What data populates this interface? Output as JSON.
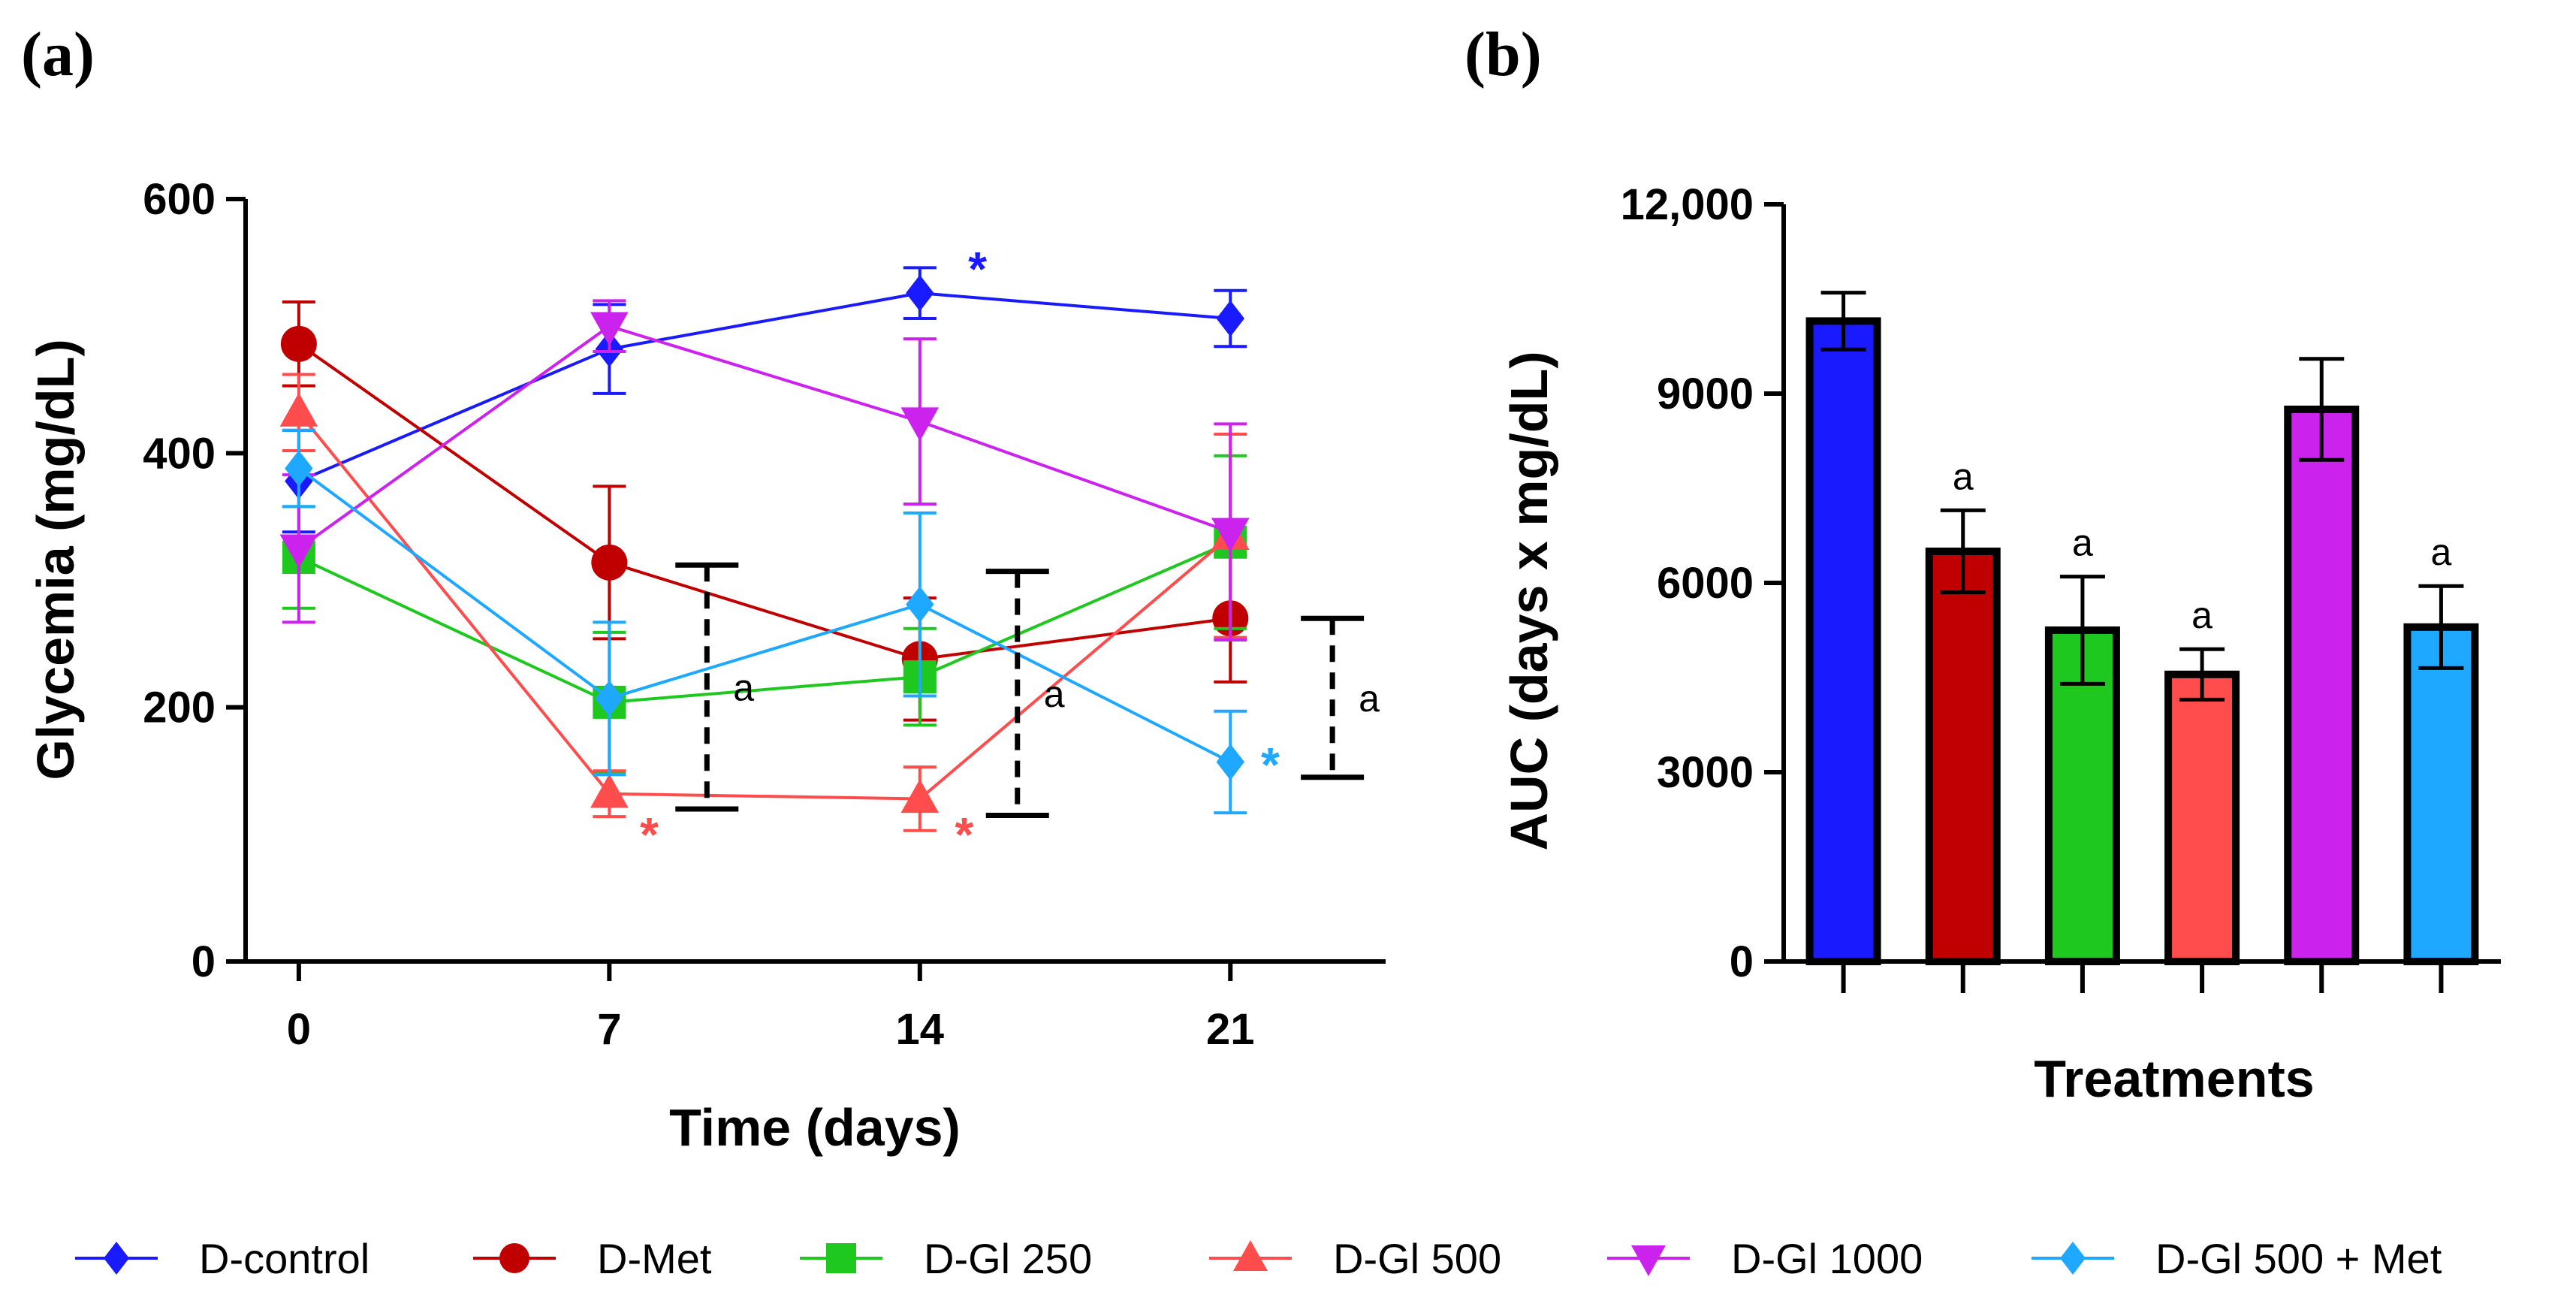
{
  "panels": {
    "a": "(a)",
    "b": "(b)"
  },
  "chart_data": [
    {
      "type": "line",
      "panel": "(a)",
      "title": "",
      "xlabel": "Time (days)",
      "ylabel": "Glycemia (mg/dL)",
      "x": [
        0,
        7,
        14,
        21
      ],
      "x_tick_labels": [
        "0",
        "7",
        "14",
        "21"
      ],
      "xlim": [
        -1.2,
        24.5
      ],
      "ylim": [
        0,
        600
      ],
      "y_ticks": [
        0,
        200,
        400,
        600
      ],
      "y_tick_labels": [
        "0",
        "200",
        "400",
        "600"
      ],
      "series": [
        {
          "name": "D-control",
          "color": "#1a1aff",
          "marker": "diamond",
          "values": [
            378,
            482,
            526,
            506
          ],
          "errors": [
            40,
            35,
            20,
            22
          ]
        },
        {
          "name": "D-Met",
          "color": "#c00000",
          "marker": "circle",
          "values": [
            486,
            314,
            238,
            270
          ],
          "errors": [
            33,
            60,
            48,
            50
          ]
        },
        {
          "name": "D-Gl 250",
          "color": "#1ec81e",
          "marker": "square",
          "values": [
            318,
            204,
            224,
            330
          ],
          "errors": [
            40,
            55,
            38,
            68
          ]
        },
        {
          "name": "D-Gl 500",
          "color": "#ff4d4d",
          "marker": "triangle-up",
          "values": [
            432,
            132,
            128,
            335
          ],
          "errors": [
            30,
            18,
            25,
            80
          ]
        },
        {
          "name": "D-Gl 1000",
          "color": "#cc22ee",
          "marker": "triangle-down",
          "values": [
            325,
            500,
            425,
            338
          ],
          "errors": [
            58,
            20,
            65,
            85
          ]
        },
        {
          "name": "D-Gl 500 + Met",
          "color": "#1ea8ff",
          "marker": "diamond",
          "values": [
            388,
            207,
            281,
            157
          ],
          "errors": [
            30,
            60,
            72,
            40
          ]
        }
      ],
      "significance_brackets": [
        {
          "x": 9.2,
          "y_low": 120,
          "y_high": 312,
          "label": "a"
        },
        {
          "x": 16.2,
          "y_low": 115,
          "y_high": 307,
          "label": "a"
        },
        {
          "x": 23.3,
          "y_low": 145,
          "y_high": 270,
          "label": "a"
        }
      ],
      "stars": [
        {
          "series": "D-control",
          "label": "*",
          "x": 15.3,
          "y": 545
        },
        {
          "series": "D-Gl 500",
          "label": "*",
          "x": 7.9,
          "y": 100
        },
        {
          "series": "D-Gl 500",
          "label": "*",
          "x": 15.0,
          "y": 100
        },
        {
          "series": "D-Gl 500 + Met",
          "label": "*",
          "x": 21.9,
          "y": 155
        }
      ]
    },
    {
      "type": "bar",
      "panel": "(b)",
      "title": "",
      "xlabel": "Treatments",
      "ylabel": "AUC (days x mg/dL)",
      "categories": [
        "D-control",
        "D-Met",
        "D-Gl 250",
        "D-Gl 500",
        "D-Gl 1000",
        "D-Gl 500 + Met"
      ],
      "colors": [
        "#1a1aff",
        "#c00000",
        "#1ec81e",
        "#ff4d4d",
        "#cc22ee",
        "#1ea8ff"
      ],
      "values": [
        10150,
        6500,
        5250,
        4550,
        8750,
        5300
      ],
      "errors": [
        450,
        650,
        850,
        400,
        800,
        650
      ],
      "annotations": [
        "",
        "a",
        "a",
        "a",
        "",
        "a"
      ],
      "ylim": [
        0,
        12000
      ],
      "y_ticks": [
        0,
        3000,
        6000,
        9000,
        12000
      ],
      "y_tick_labels": [
        "0",
        "3000",
        "6000",
        "9000",
        "12,000"
      ]
    }
  ],
  "legend": [
    {
      "label": "D-control",
      "color": "#1a1aff",
      "marker": "diamond"
    },
    {
      "label": "D-Met",
      "color": "#c00000",
      "marker": "circle"
    },
    {
      "label": "D-Gl 250",
      "color": "#1ec81e",
      "marker": "square"
    },
    {
      "label": "D-Gl 500",
      "color": "#ff4d4d",
      "marker": "triangle-up"
    },
    {
      "label": "D-Gl 1000",
      "color": "#cc22ee",
      "marker": "triangle-down"
    },
    {
      "label": "D-Gl 500 + Met",
      "color": "#1ea8ff",
      "marker": "diamond"
    }
  ]
}
